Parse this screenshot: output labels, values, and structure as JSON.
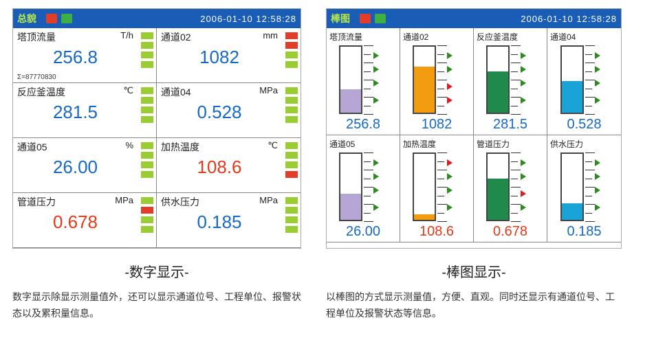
{
  "colors": {
    "header_bg": "#1a5db6",
    "header_title": "#b6e84a",
    "seg_green": "#9acd32",
    "seg_red": "#e23d28",
    "val_blue": "#1769c6",
    "val_red": "#e33a1a",
    "bar_purple": "#b6a6d6",
    "bar_orange": "#f39c12",
    "bar_green": "#1f8a4c",
    "bar_cyan": "#1aa3d6",
    "marker_green": "#2e8b20",
    "marker_red": "#d62020"
  },
  "digit_panel": {
    "title": "总貌",
    "timestamp": "2006-01-10 12:58:28",
    "cells": [
      {
        "label": "塔顶流量",
        "unit": "T/h",
        "value": "256.8",
        "value_color": "#1769c6",
        "segs": [
          "#9acd32",
          "#9acd32",
          "#9acd32",
          "#9acd32"
        ],
        "sum": "Σ=87770830"
      },
      {
        "label": "通道02",
        "unit": "mm",
        "value": "1082",
        "value_color": "#1769c6",
        "segs": [
          "#e23d28",
          "#e23d28",
          "#9acd32",
          "#9acd32"
        ]
      },
      {
        "label": "反应釜温度",
        "unit": "℃",
        "value": "281.5",
        "value_color": "#1769c6",
        "segs": [
          "#9acd32",
          "#9acd32",
          "#9acd32",
          "#9acd32"
        ]
      },
      {
        "label": "通道04",
        "unit": "MPa",
        "value": "0.528",
        "value_color": "#1769c6",
        "segs": [
          "#9acd32",
          "#9acd32",
          "#9acd32",
          "#9acd32"
        ]
      },
      {
        "label": "通道05",
        "unit": "%",
        "value": "26.00",
        "value_color": "#1769c6",
        "segs": [
          "#9acd32",
          "#9acd32",
          "#9acd32",
          "#9acd32"
        ]
      },
      {
        "label": "加热温度",
        "unit": "℃",
        "value": "108.6",
        "value_color": "#e33a1a",
        "segs": [
          "#9acd32",
          "#9acd32",
          "#9acd32",
          "#e23d28"
        ]
      },
      {
        "label": "管道压力",
        "unit": "MPa",
        "value": "0.678",
        "value_color": "#e33a1a",
        "segs": [
          "#9acd32",
          "#e23d28",
          "#9acd32",
          "#9acd32"
        ]
      },
      {
        "label": "供水压力",
        "unit": "MPa",
        "value": "0.185",
        "value_color": "#1769c6",
        "segs": [
          "#9acd32",
          "#9acd32",
          "#9acd32",
          "#9acd32"
        ]
      }
    ]
  },
  "bar_panel": {
    "title": "棒图",
    "timestamp": "2006-01-10 12:58:28",
    "tick_positions": [
      0,
      12.5,
      25,
      37.5,
      50,
      62.5,
      75,
      87.5,
      100
    ],
    "cells": [
      {
        "label": "塔顶流量",
        "value": "256.8",
        "value_color": "#1769c6",
        "fill_pct": 35,
        "fill_color": "#b6a6d6",
        "markers": [
          {
            "pos": 20,
            "color": "#2e8b20"
          },
          {
            "pos": 45,
            "color": "#2e8b20"
          },
          {
            "pos": 65,
            "color": "#2e8b20"
          },
          {
            "pos": 85,
            "color": "#2e8b20"
          }
        ]
      },
      {
        "label": "通道02",
        "value": "1082",
        "value_color": "#1769c6",
        "fill_pct": 70,
        "fill_color": "#f39c12",
        "markers": [
          {
            "pos": 20,
            "color": "#d62020"
          },
          {
            "pos": 40,
            "color": "#d62020"
          },
          {
            "pos": 65,
            "color": "#2e8b20"
          },
          {
            "pos": 85,
            "color": "#2e8b20"
          }
        ]
      },
      {
        "label": "反应釜温度",
        "value": "281.5",
        "value_color": "#1769c6",
        "fill_pct": 62,
        "fill_color": "#1f8a4c",
        "markers": [
          {
            "pos": 20,
            "color": "#2e8b20"
          },
          {
            "pos": 45,
            "color": "#2e8b20"
          },
          {
            "pos": 65,
            "color": "#2e8b20"
          },
          {
            "pos": 85,
            "color": "#2e8b20"
          }
        ]
      },
      {
        "label": "通道04",
        "value": "0.528",
        "value_color": "#1769c6",
        "fill_pct": 48,
        "fill_color": "#1aa3d6",
        "markers": [
          {
            "pos": 20,
            "color": "#2e8b20"
          },
          {
            "pos": 45,
            "color": "#2e8b20"
          },
          {
            "pos": 65,
            "color": "#2e8b20"
          },
          {
            "pos": 85,
            "color": "#2e8b20"
          }
        ]
      },
      {
        "label": "通道05",
        "value": "26.00",
        "value_color": "#1769c6",
        "fill_pct": 40,
        "fill_color": "#b6a6d6",
        "markers": [
          {
            "pos": 20,
            "color": "#2e8b20"
          },
          {
            "pos": 45,
            "color": "#2e8b20"
          },
          {
            "pos": 65,
            "color": "#2e8b20"
          },
          {
            "pos": 85,
            "color": "#2e8b20"
          }
        ]
      },
      {
        "label": "加热温度",
        "value": "108.6",
        "value_color": "#e33a1a",
        "fill_pct": 8,
        "fill_color": "#f39c12",
        "markers": [
          {
            "pos": 20,
            "color": "#2e8b20"
          },
          {
            "pos": 45,
            "color": "#2e8b20"
          },
          {
            "pos": 65,
            "color": "#2e8b20"
          },
          {
            "pos": 85,
            "color": "#d62020"
          }
        ]
      },
      {
        "label": "管道压力",
        "value": "0.678",
        "value_color": "#e33a1a",
        "fill_pct": 62,
        "fill_color": "#1f8a4c",
        "markers": [
          {
            "pos": 20,
            "color": "#2e8b20"
          },
          {
            "pos": 40,
            "color": "#d62020"
          },
          {
            "pos": 65,
            "color": "#2e8b20"
          },
          {
            "pos": 85,
            "color": "#2e8b20"
          }
        ]
      },
      {
        "label": "供水压力",
        "value": "0.185",
        "value_color": "#1769c6",
        "fill_pct": 25,
        "fill_color": "#1aa3d6",
        "markers": [
          {
            "pos": 20,
            "color": "#2e8b20"
          },
          {
            "pos": 45,
            "color": "#2e8b20"
          },
          {
            "pos": 65,
            "color": "#2e8b20"
          },
          {
            "pos": 85,
            "color": "#2e8b20"
          }
        ]
      }
    ]
  },
  "captions": {
    "digit_title": "-数字显示-",
    "digit_body": "数字显示除显示测量值外，还可以显示通道位号、工程单位、报警状态以及累积量信息。",
    "bar_title": "-棒图显示-",
    "bar_body": "以棒图的方式显示测量值，方便、直观。同时还显示有通道位号、工程单位及报警状态等信息。"
  }
}
